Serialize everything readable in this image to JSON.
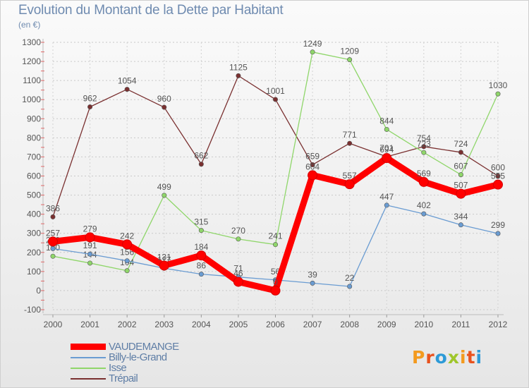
{
  "title": "Evolution du Montant de la Dette par Habitant",
  "subtitle": "(en €)",
  "logo_text": "Proxiti",
  "logo_colors": [
    "#f39a1e",
    "#e8531e",
    "#2c9ad7",
    "#9fc62b",
    "#f39a1e",
    "#e8531e",
    "#2c9ad7"
  ],
  "chart_data": {
    "type": "line",
    "categories": [
      "2000",
      "2001",
      "2002",
      "2003",
      "2004",
      "2005",
      "2006",
      "2007",
      "2008",
      "2009",
      "2010",
      "2011",
      "2012"
    ],
    "ylim": [
      -100,
      1300
    ],
    "yticks": [
      -100,
      0,
      100,
      200,
      300,
      400,
      500,
      600,
      700,
      800,
      900,
      1000,
      1100,
      1200,
      1300
    ],
    "grid": true,
    "legend_position": "bottom-left",
    "series": [
      {
        "name": "Trépail",
        "color": "#7a3030",
        "values": [
          386,
          962,
          1054,
          960,
          662,
          1125,
          1001,
          659,
          771,
          701,
          754,
          724,
          600
        ]
      },
      {
        "name": "Isse",
        "color": "#8fd66a",
        "values": [
          180,
          144,
          104,
          499,
          315,
          270,
          241,
          1249,
          1209,
          844,
          723,
          607,
          1030
        ]
      },
      {
        "name": "Billy-le-Grand",
        "color": "#6a9cd2",
        "values": [
          220,
          191,
          156,
          117,
          86,
          71,
          56,
          39,
          22,
          447,
          402,
          344,
          299
        ]
      },
      {
        "name": "VAUDEMANGE",
        "color": "#ff0000",
        "values": [
          257,
          279,
          242,
          131,
          184,
          46,
          0,
          604,
          557,
          694,
          569,
          507,
          555
        ]
      }
    ]
  }
}
